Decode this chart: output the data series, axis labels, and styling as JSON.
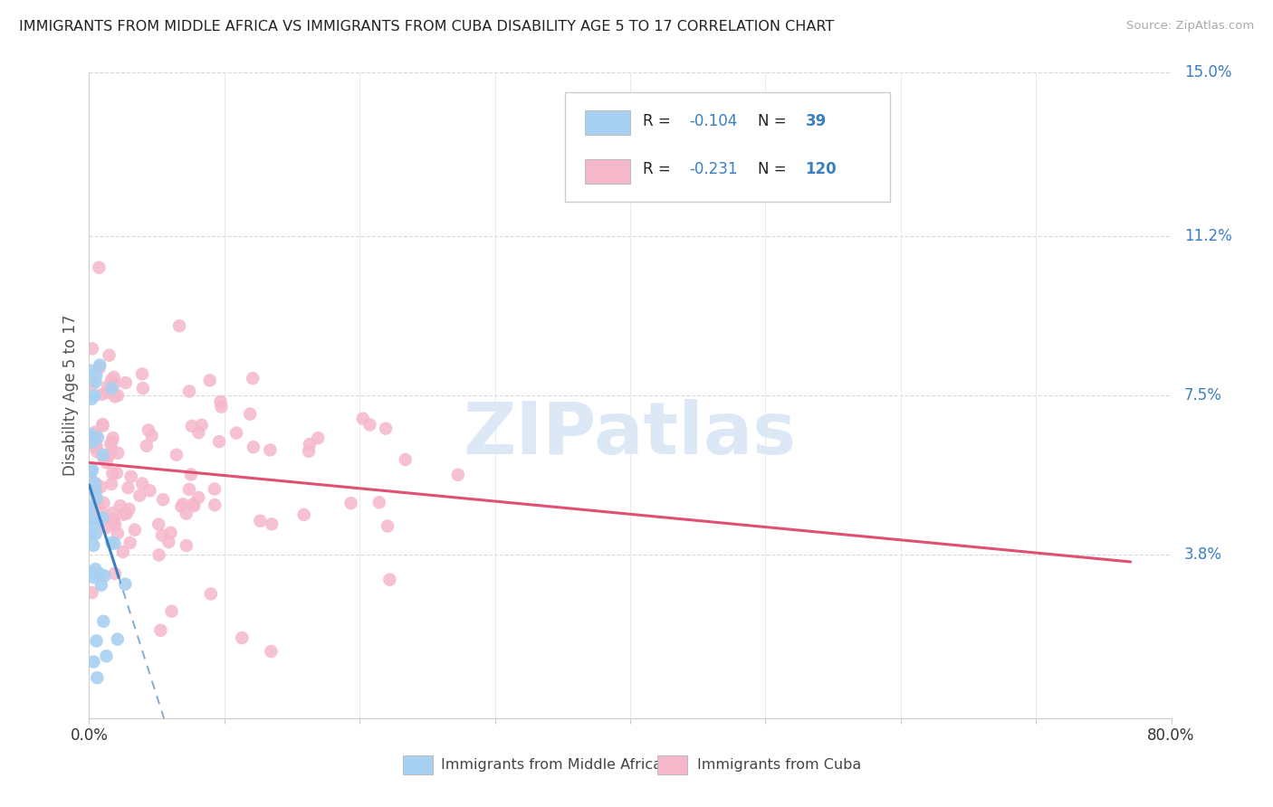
{
  "title": "IMMIGRANTS FROM MIDDLE AFRICA VS IMMIGRANTS FROM CUBA DISABILITY AGE 5 TO 17 CORRELATION CHART",
  "source": "Source: ZipAtlas.com",
  "ylabel": "Disability Age 5 to 17",
  "xlim": [
    0.0,
    0.8
  ],
  "ylim": [
    0.0,
    0.15
  ],
  "ytick_vals": [
    0.0,
    0.038,
    0.075,
    0.112,
    0.15
  ],
  "ytick_labels": [
    "",
    "3.8%",
    "7.5%",
    "11.2%",
    "15.0%"
  ],
  "xtick_positions": [
    0.0,
    0.1,
    0.2,
    0.3,
    0.4,
    0.5,
    0.6,
    0.7,
    0.8
  ],
  "xtick_labels": [
    "0.0%",
    "",
    "",
    "",
    "",
    "",
    "",
    "",
    "80.0%"
  ],
  "blue_R": -0.104,
  "blue_N": 39,
  "pink_R": -0.231,
  "pink_N": 120,
  "blue_color": "#a8d0f0",
  "pink_color": "#f5b8ca",
  "blue_line_color": "#3a7fc1",
  "pink_line_color": "#e05070",
  "legend_R_color": "#3a7fc1",
  "legend_N_color": "#3a7fc1",
  "watermark": "ZIPatlas",
  "background_color": "#ffffff",
  "grid_color_h": "#d8d8d8",
  "grid_color_v": "#e8e8e8"
}
